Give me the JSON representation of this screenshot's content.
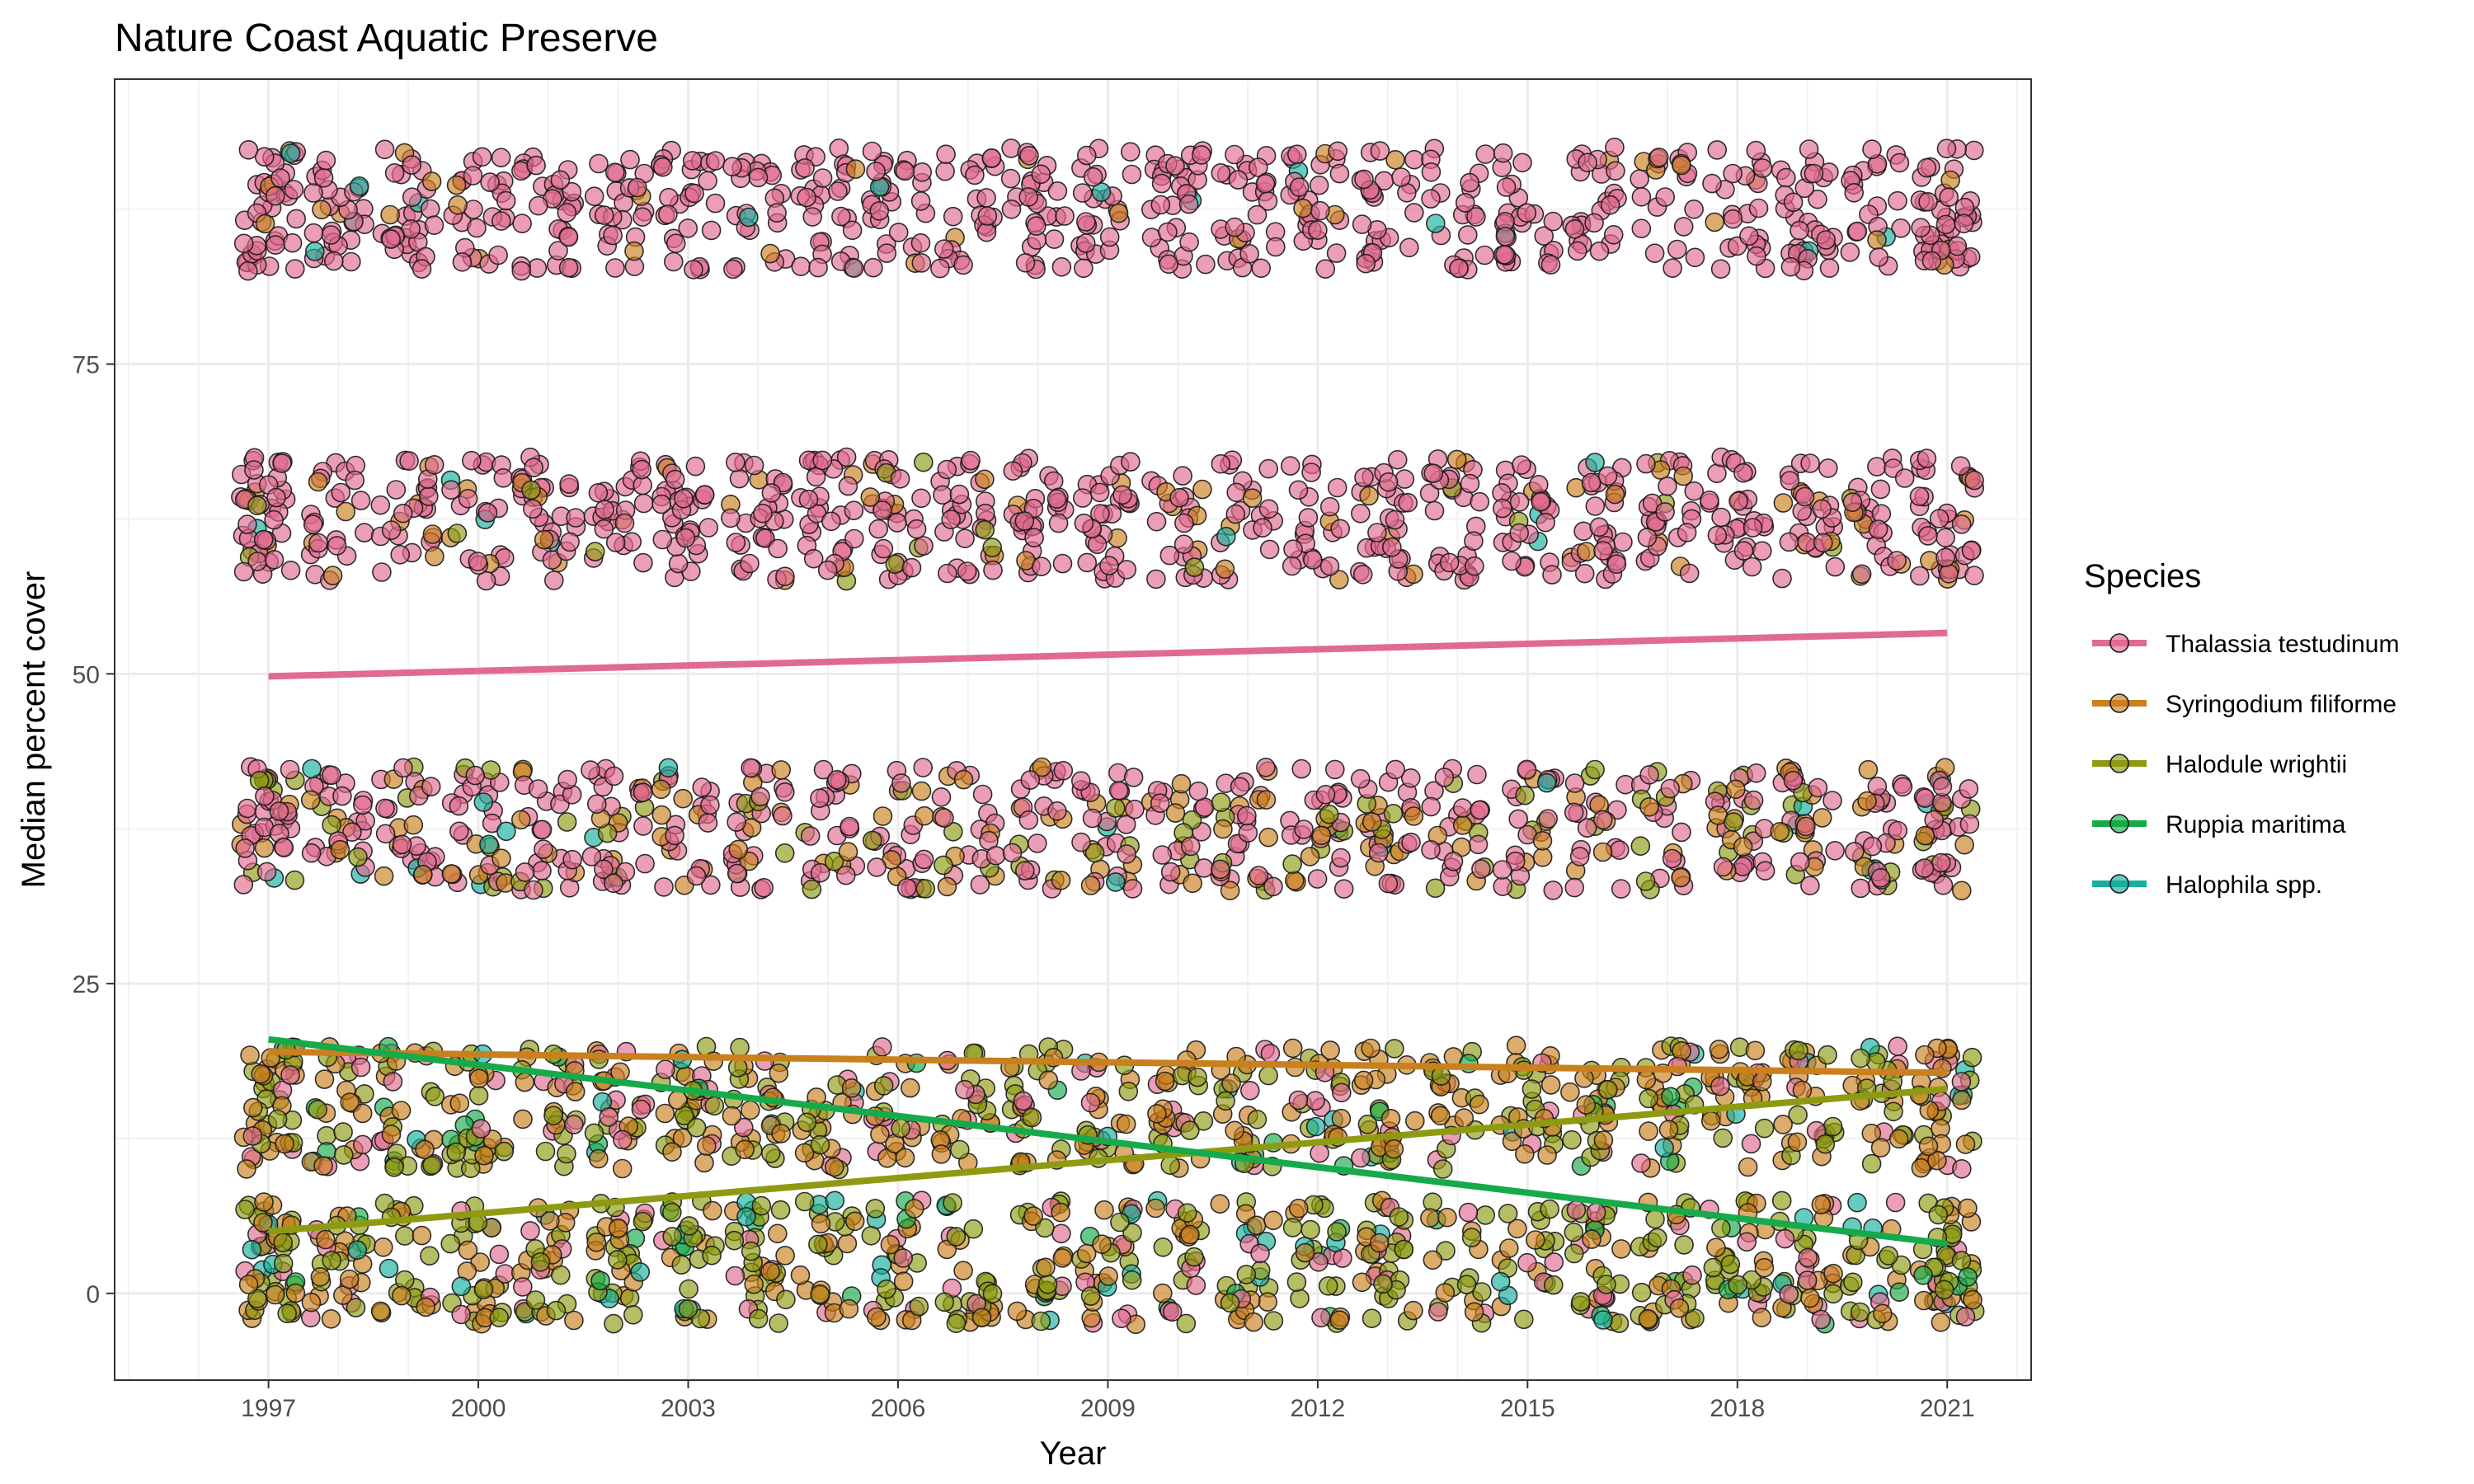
{
  "chart_data": {
    "type": "scatter",
    "title": "Nature Coast Aquatic Preserve",
    "xlabel": "Year",
    "ylabel": "Median percent cover",
    "xlim": [
      1994.8,
      2022.2
    ],
    "ylim": [
      -7,
      98
    ],
    "x_ticks": [
      1997,
      2000,
      2003,
      2006,
      2009,
      2012,
      2015,
      2018,
      2021
    ],
    "y_ticks": [
      0,
      25,
      50,
      75
    ],
    "x_tick_labels": [
      "1997",
      "2000",
      "2003",
      "2006",
      "2009",
      "2012",
      "2015",
      "2018",
      "2021"
    ],
    "y_tick_labels": [
      "0",
      "25",
      "50",
      "75"
    ],
    "grid": true,
    "legend": {
      "title": "Species",
      "position": "right",
      "entries": [
        "Thalassia testudinum",
        "Syringodium filiforme",
        "Halodule wrightii",
        "Ruppia maritima",
        "Halophila spp."
      ]
    },
    "series": [
      {
        "name": "Thalassia testudinum",
        "color": "#E06B8F",
        "trend": {
          "x": [
            1997,
            2021
          ],
          "y": [
            49.8,
            53.3
          ]
        }
      },
      {
        "name": "Syringodium filiforme",
        "color": "#C9801E",
        "trend": {
          "x": [
            1997,
            2021
          ],
          "y": [
            19.5,
            17.8
          ]
        }
      },
      {
        "name": "Halodule wrightii",
        "color": "#8E9B12",
        "trend": {
          "x": [
            1997,
            2021
          ],
          "y": [
            5.0,
            16.5
          ]
        }
      },
      {
        "name": "Ruppia maritima",
        "color": "#17AA4B",
        "trend": {
          "x": [
            1997,
            2021
          ],
          "y": [
            20.5,
            4.0
          ]
        }
      },
      {
        "name": "Halophila spp.",
        "color": "#16B19E",
        "trend": null
      }
    ],
    "point_bands": [
      {
        "y_range": [
          -2.5,
          7.5
        ],
        "composition": [
          [
            0,
            0.14
          ],
          [
            1,
            0.3
          ],
          [
            2,
            0.46
          ],
          [
            3,
            0.05
          ],
          [
            4,
            0.05
          ]
        ]
      },
      {
        "y_range": [
          10,
          20
        ],
        "composition": [
          [
            0,
            0.16
          ],
          [
            1,
            0.44
          ],
          [
            2,
            0.33
          ],
          [
            3,
            0.04
          ],
          [
            4,
            0.03
          ]
        ]
      },
      {
        "y_range": [
          32.5,
          42.5
        ],
        "composition": [
          [
            0,
            0.6
          ],
          [
            1,
            0.22
          ],
          [
            2,
            0.15
          ],
          [
            4,
            0.03
          ]
        ]
      },
      {
        "y_range": [
          57.5,
          67.5
        ],
        "composition": [
          [
            0,
            0.86
          ],
          [
            1,
            0.1
          ],
          [
            2,
            0.03
          ],
          [
            4,
            0.01
          ]
        ]
      },
      {
        "y_range": [
          82.5,
          92.5
        ],
        "composition": [
          [
            0,
            0.95
          ],
          [
            1,
            0.04
          ],
          [
            4,
            0.01
          ]
        ]
      }
    ],
    "point_x_range": [
      1996.6,
      2021.4
    ]
  }
}
